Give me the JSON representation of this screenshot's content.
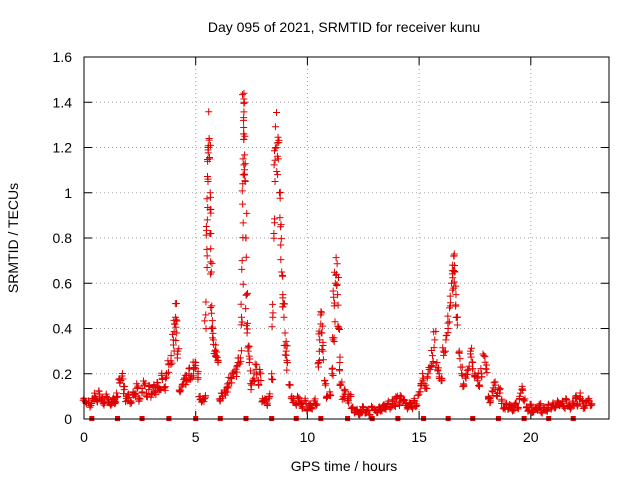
{
  "chart_data": {
    "type": "scatter",
    "title": "Day 095 of 2021, SRMTID for receiver kunu",
    "xlabel": "GPS time / hours",
    "ylabel": "SRMTID / TECUs",
    "xlim": [
      0,
      23.5
    ],
    "ylim": [
      0,
      1.6
    ],
    "x_ticks": [
      0,
      5,
      10,
      15,
      20
    ],
    "x_tick_labels": [
      "0",
      "5",
      "10",
      "15",
      "20"
    ],
    "y_ticks": [
      0,
      0.2,
      0.4,
      0.6,
      0.8,
      1.0,
      1.2,
      1.4,
      1.6
    ],
    "y_tick_labels": [
      "0",
      "0.2",
      "0.4",
      "0.6",
      "0.8",
      "1",
      "1.2",
      "1.4",
      "1.6"
    ],
    "grid": true,
    "marker": "plus",
    "marker_color": "#e00000",
    "series": [
      {
        "name": "SRMTID",
        "points": [
          [
            0.0,
            0.09
          ],
          [
            0.1,
            0.07
          ],
          [
            0.2,
            0.08
          ],
          [
            0.3,
            0.06
          ],
          [
            0.4,
            0.09
          ],
          [
            0.5,
            0.1
          ],
          [
            0.6,
            0.08
          ],
          [
            0.7,
            0.11
          ],
          [
            0.8,
            0.09
          ],
          [
            0.9,
            0.07
          ],
          [
            1.0,
            0.1
          ],
          [
            1.1,
            0.08
          ],
          [
            1.2,
            0.06
          ],
          [
            1.3,
            0.09
          ],
          [
            1.4,
            0.07
          ],
          [
            1.5,
            0.1
          ],
          [
            1.6,
            0.16
          ],
          [
            1.7,
            0.19
          ],
          [
            1.8,
            0.13
          ],
          [
            1.9,
            0.09
          ],
          [
            2.0,
            0.11
          ],
          [
            2.1,
            0.08
          ],
          [
            2.2,
            0.12
          ],
          [
            2.3,
            0.1
          ],
          [
            2.4,
            0.14
          ],
          [
            2.5,
            0.09
          ],
          [
            2.6,
            0.12
          ],
          [
            2.7,
            0.15
          ],
          [
            2.8,
            0.1
          ],
          [
            2.9,
            0.13
          ],
          [
            3.0,
            0.11
          ],
          [
            3.1,
            0.14
          ],
          [
            3.2,
            0.12
          ],
          [
            3.3,
            0.16
          ],
          [
            3.4,
            0.13
          ],
          [
            3.5,
            0.18
          ],
          [
            3.6,
            0.14
          ],
          [
            3.7,
            0.2
          ],
          [
            3.8,
            0.24
          ],
          [
            3.9,
            0.28
          ],
          [
            4.0,
            0.35
          ],
          [
            4.05,
            0.42
          ],
          [
            4.1,
            0.45
          ],
          [
            4.15,
            0.38
          ],
          [
            4.2,
            0.3
          ],
          [
            4.3,
            0.12
          ],
          [
            4.4,
            0.15
          ],
          [
            4.5,
            0.18
          ],
          [
            4.6,
            0.17
          ],
          [
            4.7,
            0.2
          ],
          [
            4.8,
            0.19
          ],
          [
            4.9,
            0.22
          ],
          [
            5.0,
            0.25
          ],
          [
            5.1,
            0.2
          ],
          [
            5.2,
            0.1
          ],
          [
            5.3,
            0.08
          ],
          [
            5.4,
            0.09
          ],
          [
            5.45,
            0.46
          ],
          [
            5.5,
            0.75
          ],
          [
            5.52,
            0.88
          ],
          [
            5.55,
            1.05
          ],
          [
            5.57,
            1.2
          ],
          [
            5.6,
            1.24
          ],
          [
            5.62,
            1.15
          ],
          [
            5.65,
            1.0
          ],
          [
            5.68,
            0.82
          ],
          [
            5.7,
            0.65
          ],
          [
            5.72,
            0.5
          ],
          [
            5.75,
            0.4
          ],
          [
            5.8,
            0.33
          ],
          [
            5.85,
            0.3
          ],
          [
            5.9,
            0.28
          ],
          [
            6.0,
            0.25
          ],
          [
            6.1,
            0.09
          ],
          [
            6.2,
            0.1
          ],
          [
            6.3,
            0.12
          ],
          [
            6.4,
            0.14
          ],
          [
            6.5,
            0.16
          ],
          [
            6.6,
            0.18
          ],
          [
            6.7,
            0.2
          ],
          [
            6.8,
            0.22
          ],
          [
            6.9,
            0.25
          ],
          [
            7.0,
            0.27
          ],
          [
            7.05,
            0.45
          ],
          [
            7.08,
            0.7
          ],
          [
            7.1,
            0.95
          ],
          [
            7.12,
            1.15
          ],
          [
            7.14,
            1.32
          ],
          [
            7.16,
            1.44
          ],
          [
            7.18,
            1.4
          ],
          [
            7.2,
            1.25
          ],
          [
            7.22,
            1.05
          ],
          [
            7.25,
            0.8
          ],
          [
            7.28,
            0.55
          ],
          [
            7.3,
            0.38
          ],
          [
            7.35,
            0.3
          ],
          [
            7.4,
            0.25
          ],
          [
            7.5,
            0.15
          ],
          [
            7.6,
            0.18
          ],
          [
            7.7,
            0.22
          ],
          [
            7.8,
            0.17
          ],
          [
            7.9,
            0.2
          ],
          [
            8.0,
            0.08
          ],
          [
            8.1,
            0.09
          ],
          [
            8.2,
            0.07
          ],
          [
            8.3,
            0.1
          ],
          [
            8.4,
            0.2
          ],
          [
            8.45,
            0.45
          ],
          [
            8.5,
            0.82
          ],
          [
            8.55,
            1.05
          ],
          [
            8.6,
            1.2
          ],
          [
            8.65,
            1.22
          ],
          [
            8.7,
            1.15
          ],
          [
            8.75,
            1.0
          ],
          [
            8.8,
            0.85
          ],
          [
            8.85,
            0.65
          ],
          [
            8.9,
            0.55
          ],
          [
            8.95,
            0.45
          ],
          [
            9.0,
            0.38
          ],
          [
            9.05,
            0.3
          ],
          [
            9.1,
            0.25
          ],
          [
            9.2,
            0.15
          ],
          [
            9.3,
            0.1
          ],
          [
            9.4,
            0.08
          ],
          [
            9.5,
            0.06
          ],
          [
            9.6,
            0.09
          ],
          [
            9.7,
            0.07
          ],
          [
            9.8,
            0.05
          ],
          [
            9.9,
            0.08
          ],
          [
            10.0,
            0.04
          ],
          [
            10.1,
            0.06
          ],
          [
            10.2,
            0.05
          ],
          [
            10.3,
            0.08
          ],
          [
            10.4,
            0.06
          ],
          [
            10.5,
            0.25
          ],
          [
            10.55,
            0.35
          ],
          [
            10.6,
            0.42
          ],
          [
            10.65,
            0.38
          ],
          [
            10.7,
            0.3
          ],
          [
            10.8,
            0.15
          ],
          [
            10.9,
            0.1
          ],
          [
            11.0,
            0.12
          ],
          [
            11.1,
            0.2
          ],
          [
            11.15,
            0.35
          ],
          [
            11.2,
            0.5
          ],
          [
            11.25,
            0.6
          ],
          [
            11.3,
            0.64
          ],
          [
            11.35,
            0.55
          ],
          [
            11.4,
            0.4
          ],
          [
            11.45,
            0.25
          ],
          [
            11.5,
            0.15
          ],
          [
            11.6,
            0.1
          ],
          [
            11.7,
            0.12
          ],
          [
            11.8,
            0.08
          ],
          [
            11.9,
            0.1
          ],
          [
            12.0,
            0.05
          ],
          [
            12.1,
            0.03
          ],
          [
            12.2,
            0.04
          ],
          [
            12.3,
            0.02
          ],
          [
            12.4,
            0.03
          ],
          [
            12.5,
            0.05
          ],
          [
            12.6,
            0.03
          ],
          [
            12.7,
            0.04
          ],
          [
            12.8,
            0.02
          ],
          [
            12.9,
            0.05
          ],
          [
            13.0,
            0.04
          ],
          [
            13.1,
            0.03
          ],
          [
            13.2,
            0.05
          ],
          [
            13.3,
            0.04
          ],
          [
            13.4,
            0.06
          ],
          [
            13.5,
            0.05
          ],
          [
            13.6,
            0.07
          ],
          [
            13.7,
            0.05
          ],
          [
            13.8,
            0.08
          ],
          [
            13.9,
            0.06
          ],
          [
            14.0,
            0.09
          ],
          [
            14.1,
            0.07
          ],
          [
            14.2,
            0.1
          ],
          [
            14.3,
            0.08
          ],
          [
            14.4,
            0.06
          ],
          [
            14.5,
            0.05
          ],
          [
            14.6,
            0.07
          ],
          [
            14.7,
            0.05
          ],
          [
            14.8,
            0.08
          ],
          [
            14.9,
            0.06
          ],
          [
            15.0,
            0.12
          ],
          [
            15.1,
            0.15
          ],
          [
            15.2,
            0.18
          ],
          [
            15.3,
            0.15
          ],
          [
            15.4,
            0.2
          ],
          [
            15.5,
            0.22
          ],
          [
            15.6,
            0.28
          ],
          [
            15.7,
            0.35
          ],
          [
            15.8,
            0.25
          ],
          [
            15.9,
            0.2
          ],
          [
            16.0,
            0.18
          ],
          [
            16.1,
            0.3
          ],
          [
            16.2,
            0.35
          ],
          [
            16.3,
            0.4
          ],
          [
            16.4,
            0.5
          ],
          [
            16.45,
            0.6
          ],
          [
            16.5,
            0.68
          ],
          [
            16.55,
            0.72
          ],
          [
            16.6,
            0.65
          ],
          [
            16.65,
            0.55
          ],
          [
            16.7,
            0.45
          ],
          [
            16.8,
            0.3
          ],
          [
            16.9,
            0.2
          ],
          [
            17.0,
            0.15
          ],
          [
            17.1,
            0.18
          ],
          [
            17.2,
            0.22
          ],
          [
            17.3,
            0.3
          ],
          [
            17.4,
            0.25
          ],
          [
            17.5,
            0.2
          ],
          [
            17.6,
            0.18
          ],
          [
            17.7,
            0.15
          ],
          [
            17.8,
            0.2
          ],
          [
            17.9,
            0.28
          ],
          [
            18.0,
            0.22
          ],
          [
            18.1,
            0.1
          ],
          [
            18.2,
            0.08
          ],
          [
            18.3,
            0.12
          ],
          [
            18.4,
            0.15
          ],
          [
            18.5,
            0.1
          ],
          [
            18.6,
            0.13
          ],
          [
            18.7,
            0.08
          ],
          [
            18.8,
            0.05
          ],
          [
            18.9,
            0.07
          ],
          [
            19.0,
            0.05
          ],
          [
            19.1,
            0.06
          ],
          [
            19.2,
            0.04
          ],
          [
            19.3,
            0.07
          ],
          [
            19.4,
            0.05
          ],
          [
            19.5,
            0.1
          ],
          [
            19.6,
            0.13
          ],
          [
            19.7,
            0.08
          ],
          [
            19.8,
            0.05
          ],
          [
            19.9,
            0.04
          ],
          [
            20.0,
            0.06
          ],
          [
            20.1,
            0.03
          ],
          [
            20.2,
            0.05
          ],
          [
            20.3,
            0.04
          ],
          [
            20.4,
            0.06
          ],
          [
            20.5,
            0.03
          ],
          [
            20.6,
            0.05
          ],
          [
            20.7,
            0.04
          ],
          [
            20.8,
            0.06
          ],
          [
            20.9,
            0.05
          ],
          [
            21.0,
            0.07
          ],
          [
            21.1,
            0.05
          ],
          [
            21.2,
            0.08
          ],
          [
            21.3,
            0.06
          ],
          [
            21.4,
            0.07
          ],
          [
            21.5,
            0.05
          ],
          [
            21.6,
            0.08
          ],
          [
            21.7,
            0.06
          ],
          [
            21.8,
            0.05
          ],
          [
            21.9,
            0.07
          ],
          [
            22.0,
            0.09
          ],
          [
            22.1,
            0.06
          ],
          [
            22.2,
            0.1
          ],
          [
            22.3,
            0.08
          ],
          [
            22.4,
            0.05
          ],
          [
            22.5,
            0.07
          ],
          [
            22.6,
            0.09
          ],
          [
            22.7,
            0.06
          ]
        ]
      }
    ],
    "bottom_markers_x": [
      0.35,
      1.5,
      2.6,
      3.8,
      5.0,
      6.1,
      7.25,
      8.4,
      9.5,
      10.6,
      11.8,
      12.9,
      14.05,
      15.2,
      16.3,
      17.4,
      18.55,
      19.7,
      20.8,
      21.9
    ]
  }
}
